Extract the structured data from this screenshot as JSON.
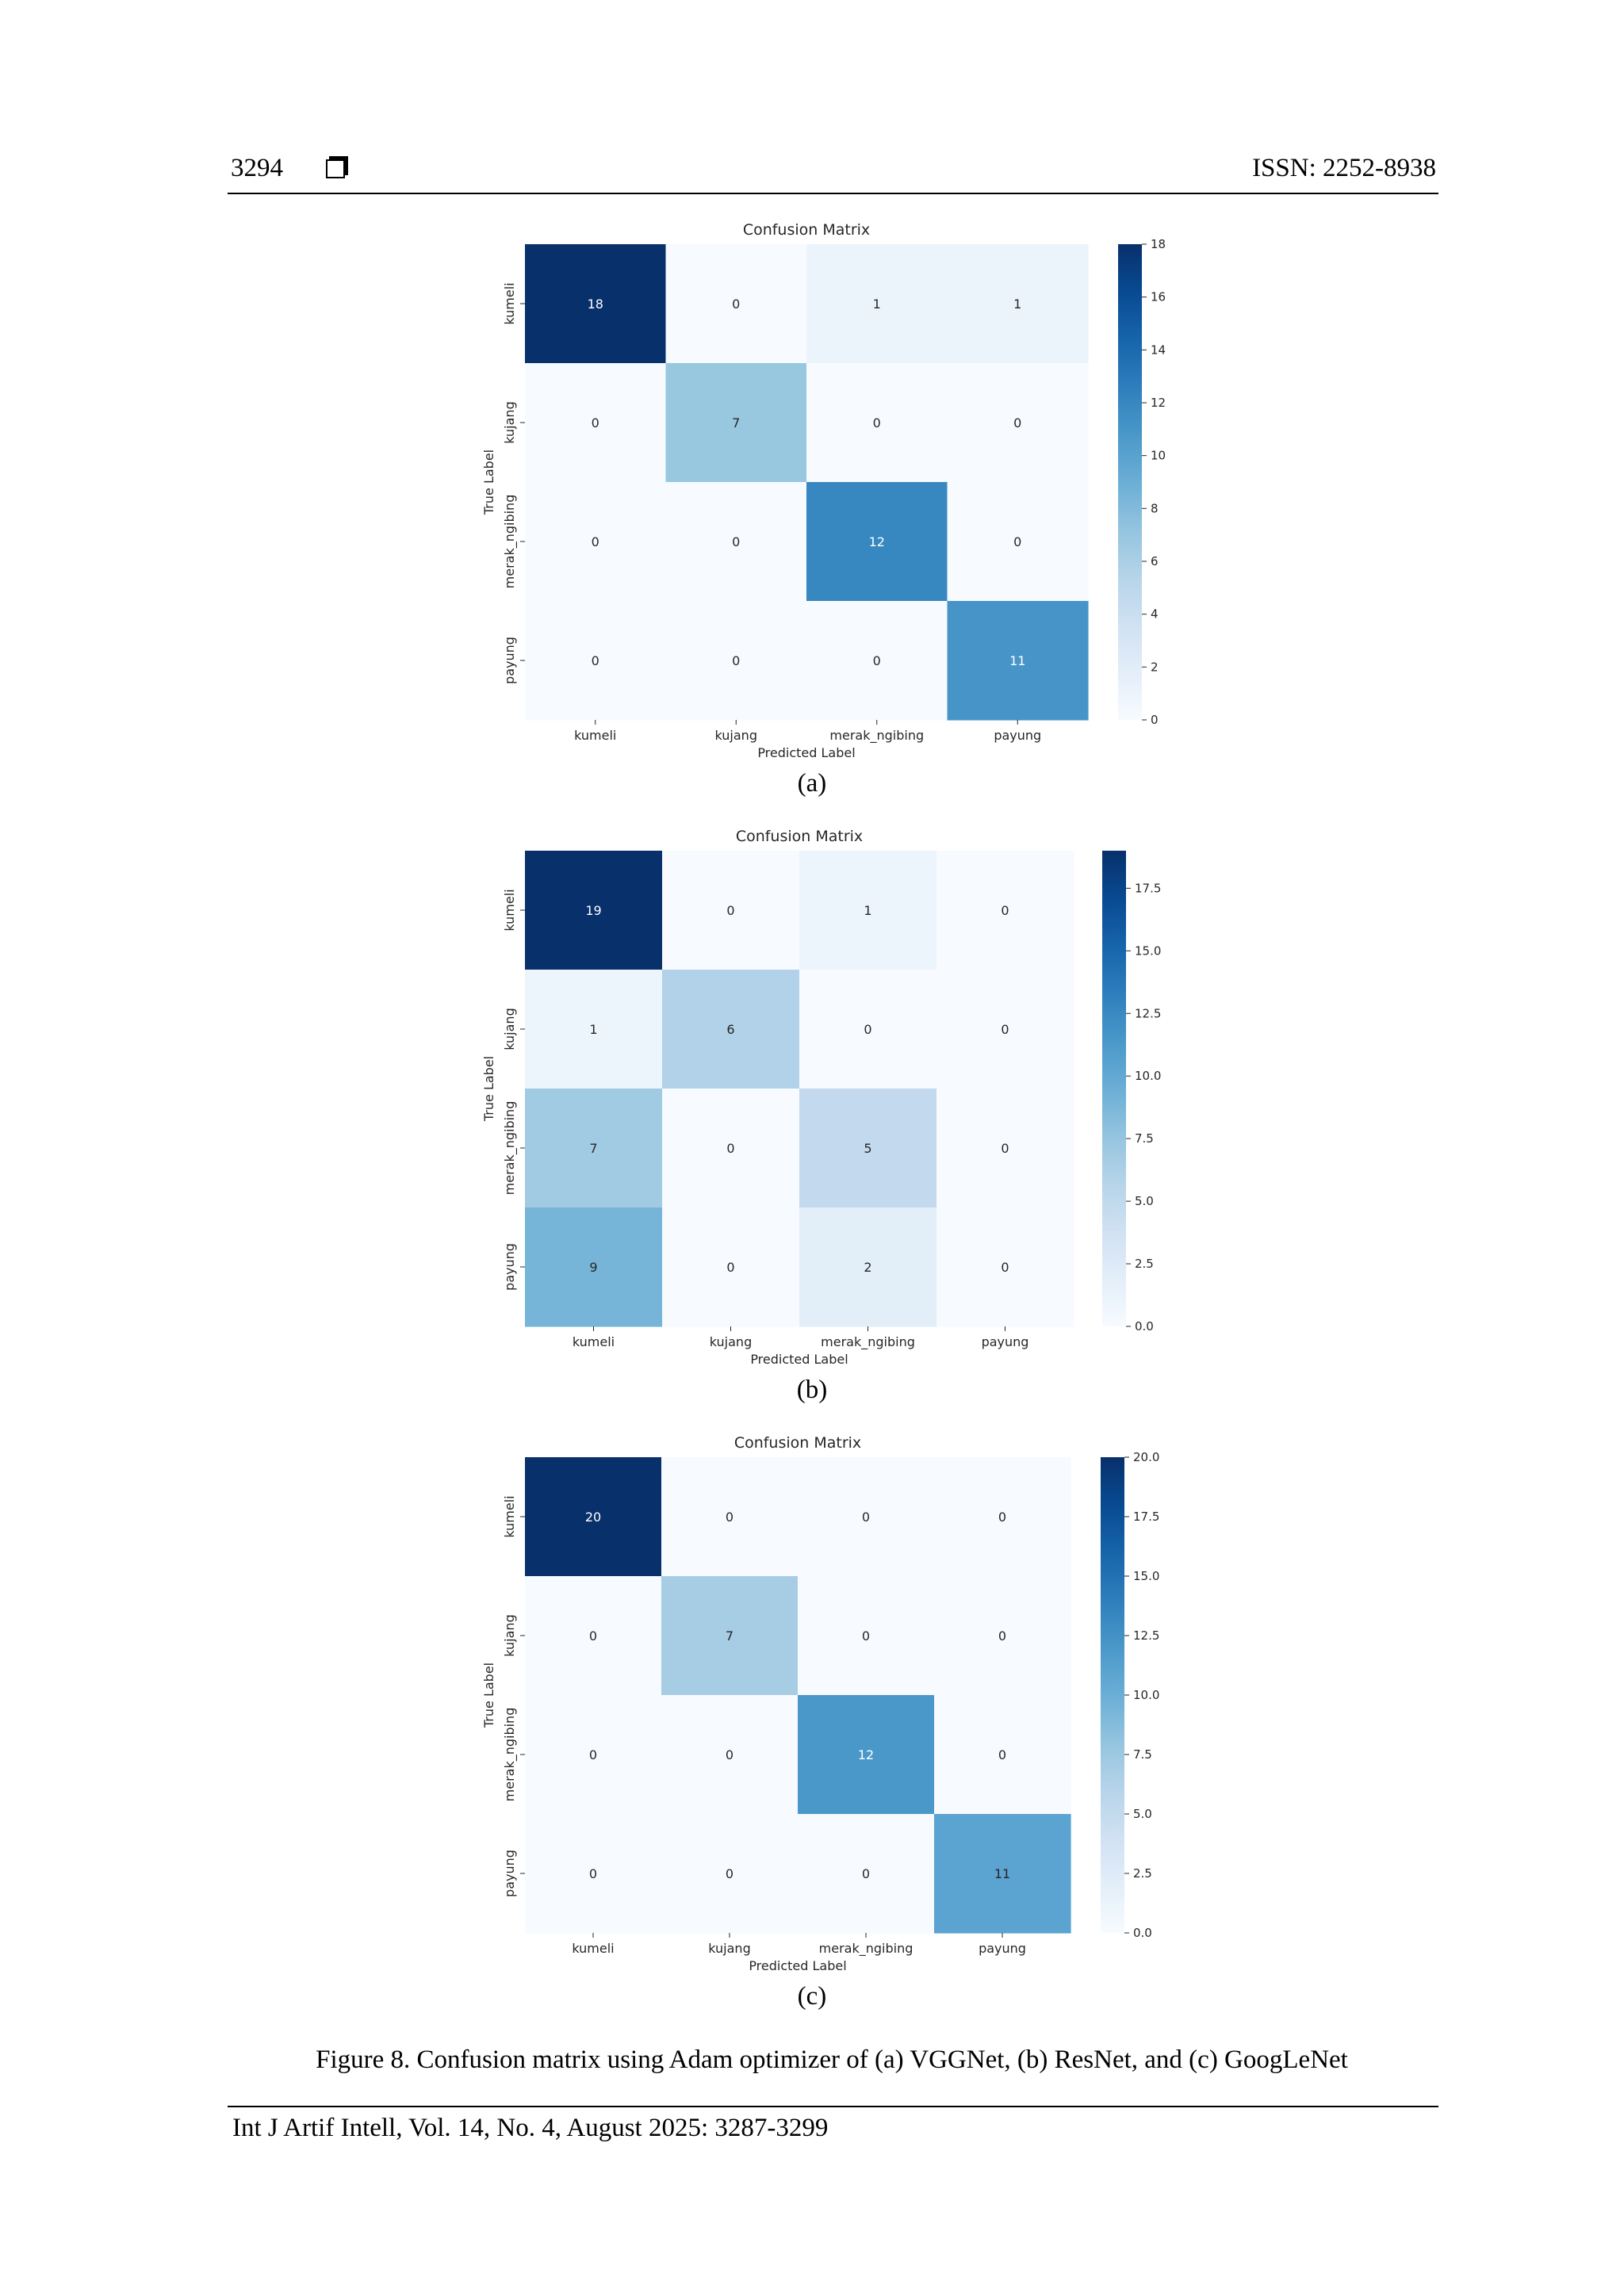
{
  "header": {
    "page_number": "3294",
    "issn": "ISSN: 2252-8938"
  },
  "figures": [
    {
      "label": "(a)",
      "chart_data": {
        "type": "heatmap",
        "title": "Confusion Matrix",
        "xlabel": "Predicted Label",
        "ylabel": "True Label",
        "x_categories": [
          "kumeli",
          "kujang",
          "merak_ngibing",
          "payung"
        ],
        "y_categories": [
          "kumeli",
          "kujang",
          "merak_ngibing",
          "payung"
        ],
        "matrix": [
          [
            18,
            0,
            1,
            1
          ],
          [
            0,
            7,
            0,
            0
          ],
          [
            0,
            0,
            12,
            0
          ],
          [
            0,
            0,
            0,
            11
          ]
        ],
        "vmin": 0,
        "vmax": 18,
        "colorbar_ticks": [
          "0",
          "2",
          "4",
          "6",
          "8",
          "10",
          "12",
          "14",
          "16",
          "18"
        ],
        "colorbar_tick_values": [
          0,
          2,
          4,
          6,
          8,
          10,
          12,
          14,
          16,
          18
        ],
        "colormap": "Blues"
      }
    },
    {
      "label": "(b)",
      "chart_data": {
        "type": "heatmap",
        "title": "Confusion Matrix",
        "xlabel": "Predicted Label",
        "ylabel": "True Label",
        "x_categories": [
          "kumeli",
          "kujang",
          "merak_ngibing",
          "payung"
        ],
        "y_categories": [
          "kumeli",
          "kujang",
          "merak_ngibing",
          "payung"
        ],
        "matrix": [
          [
            19,
            0,
            1,
            0
          ],
          [
            1,
            6,
            0,
            0
          ],
          [
            7,
            0,
            5,
            0
          ],
          [
            9,
            0,
            2,
            0
          ]
        ],
        "vmin": 0,
        "vmax": 19,
        "colorbar_ticks": [
          "0.0",
          "2.5",
          "5.0",
          "7.5",
          "10.0",
          "12.5",
          "15.0",
          "17.5"
        ],
        "colorbar_tick_values": [
          0,
          2.5,
          5,
          7.5,
          10,
          12.5,
          15,
          17.5
        ],
        "colormap": "Blues"
      }
    },
    {
      "label": "(c)",
      "chart_data": {
        "type": "heatmap",
        "title": "Confusion Matrix",
        "xlabel": "Predicted Label",
        "ylabel": "True Label",
        "x_categories": [
          "kumeli",
          "kujang",
          "merak_ngibing",
          "payung"
        ],
        "y_categories": [
          "kumeli",
          "kujang",
          "merak_ngibing",
          "payung"
        ],
        "matrix": [
          [
            20,
            0,
            0,
            0
          ],
          [
            0,
            7,
            0,
            0
          ],
          [
            0,
            0,
            12,
            0
          ],
          [
            0,
            0,
            0,
            11
          ]
        ],
        "vmin": 0,
        "vmax": 20,
        "colorbar_ticks": [
          "0.0",
          "2.5",
          "5.0",
          "7.5",
          "10.0",
          "12.5",
          "15.0",
          "17.5",
          "20.0"
        ],
        "colorbar_tick_values": [
          0,
          2.5,
          5,
          7.5,
          10,
          12.5,
          15,
          17.5,
          20
        ],
        "colormap": "Blues"
      }
    }
  ],
  "caption": "Figure 8. Confusion matrix using Adam optimizer of (a) VGGNet, (b) ResNet, and (c) GoogLeNet",
  "footer": "Int J Artif Intell, Vol. 14, No. 4, August 2025: 3287-3299"
}
